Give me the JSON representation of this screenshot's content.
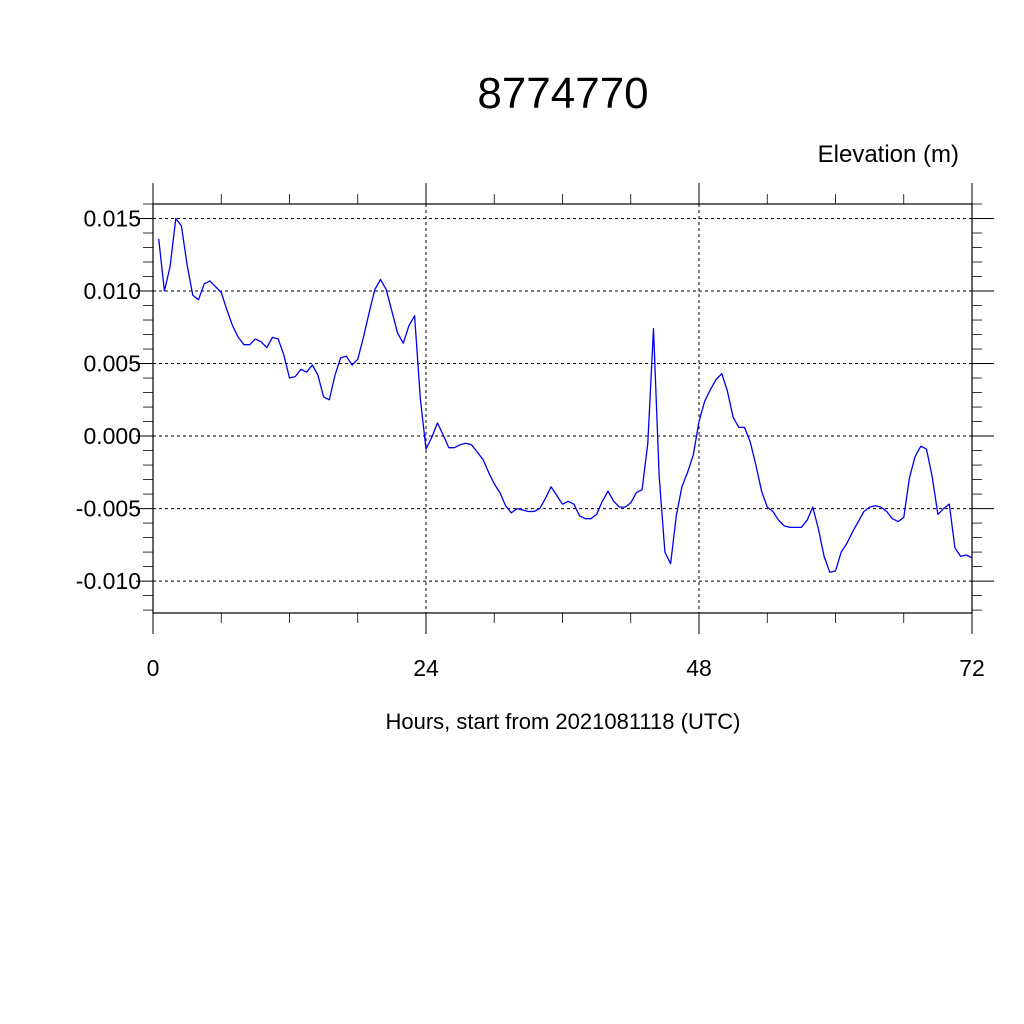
{
  "chart_data": {
    "type": "line",
    "title": "8774770",
    "units_label": "Elevation (m)",
    "xlabel": "Hours, start from 2021081118 (UTC)",
    "ylabel": "",
    "xlim": [
      0,
      72
    ],
    "ylim": [
      -0.0122,
      0.016
    ],
    "x_ticks": [
      0,
      24,
      48,
      72
    ],
    "x_tick_labels": [
      "0",
      "24",
      "48",
      "72"
    ],
    "y_ticks": [
      -0.01,
      -0.005,
      0.0,
      0.005,
      0.01,
      0.015
    ],
    "y_tick_labels": [
      "-0.010",
      "-0.005",
      "0.000",
      "0.005",
      "0.010",
      "0.015"
    ],
    "grid": true,
    "series_color": "#0000ee",
    "series": [
      {
        "x": [
          0.5,
          1,
          1.5,
          2,
          2.5,
          3,
          3.5,
          4,
          4.5,
          5,
          5.5,
          6,
          6.5,
          7,
          7.5,
          8,
          8.5,
          9,
          9.5,
          10,
          10.5,
          11,
          11.5,
          12,
          12.5,
          13,
          13.5,
          14,
          14.5,
          15,
          15.5,
          16,
          16.5,
          17,
          17.5,
          18,
          18.5,
          19,
          19.5,
          20,
          20.5,
          21,
          21.5,
          22,
          22.5,
          23,
          23.5,
          24,
          24.5,
          25,
          25.5,
          26,
          26.5,
          27,
          27.5,
          28,
          28.5,
          29,
          29.5,
          30,
          30.5,
          31,
          31.5,
          32,
          32.5,
          33,
          33.5,
          34,
          34.5,
          35,
          35.5,
          36,
          36.5,
          37,
          37.5,
          38,
          38.5,
          39,
          39.5,
          40,
          40.5,
          41,
          41.5,
          42,
          42.5,
          43,
          43.5,
          44,
          44.5,
          45,
          45.5,
          46,
          46.5,
          47,
          47.5,
          48,
          48.5,
          49,
          49.5,
          50,
          50.5,
          51,
          51.5,
          52,
          52.5,
          53,
          53.5,
          54,
          54.5,
          55,
          55.5,
          56,
          56.5,
          57,
          57.5,
          58,
          58.5,
          59,
          59.5,
          60,
          60.5,
          61,
          61.5,
          62,
          62.5,
          63,
          63.5,
          64,
          64.5,
          65,
          65.5,
          66,
          66.5,
          67,
          67.5,
          68,
          68.5,
          69,
          69.5,
          70,
          70.5,
          71,
          71.5,
          72
        ],
        "y": [
          0.0136,
          0.01,
          0.0117,
          0.015,
          0.0145,
          0.0118,
          0.0097,
          0.0094,
          0.0105,
          0.0107,
          0.0103,
          0.0099,
          0.0087,
          0.0076,
          0.0068,
          0.0063,
          0.0063,
          0.0067,
          0.0065,
          0.0061,
          0.0068,
          0.0067,
          0.0056,
          0.004,
          0.0041,
          0.0046,
          0.0044,
          0.0049,
          0.0042,
          0.0027,
          0.0025,
          0.0042,
          0.0054,
          0.0055,
          0.0049,
          0.0053,
          0.0068,
          0.0085,
          0.0101,
          0.0108,
          0.0101,
          0.0086,
          0.0071,
          0.0064,
          0.0076,
          0.0083,
          0.0026,
          -0.0009,
          -0.0001,
          0.0009,
          0.0001,
          -0.0008,
          -0.0008,
          -0.0006,
          -0.0005,
          -0.0006,
          -0.0011,
          -0.0016,
          -0.0025,
          -0.0033,
          -0.0039,
          -0.0048,
          -0.0053,
          -0.005,
          -0.0051,
          -0.0052,
          -0.0052,
          -0.005,
          -0.0043,
          -0.0035,
          -0.0041,
          -0.0047,
          -0.0045,
          -0.0047,
          -0.0055,
          -0.0057,
          -0.0057,
          -0.0054,
          -0.0045,
          -0.0038,
          -0.0045,
          -0.0049,
          -0.0049,
          -0.0046,
          -0.0039,
          -0.0037,
          -0.0005,
          0.0074,
          -0.0028,
          -0.008,
          -0.0088,
          -0.0055,
          -0.0035,
          -0.0025,
          -0.0013,
          0.001,
          0.0024,
          0.0032,
          0.0039,
          0.0043,
          0.0031,
          0.0013,
          0.0006,
          0.0006,
          -0.0004,
          -0.002,
          -0.0038,
          -0.0049,
          -0.0052,
          -0.0058,
          -0.0062,
          -0.0063,
          -0.0063,
          -0.0063,
          -0.0058,
          -0.0049,
          -0.0064,
          -0.0083,
          -0.0094,
          -0.0093,
          -0.008,
          -0.0074,
          -0.0066,
          -0.0059,
          -0.0052,
          -0.0049,
          -0.0048,
          -0.0049,
          -0.0052,
          -0.0057,
          -0.0059,
          -0.0056,
          -0.0029,
          -0.0014,
          -0.0007,
          -0.0009,
          -0.0028,
          -0.0054,
          -0.005,
          -0.0047,
          -0.0077,
          -0.0083,
          -0.0082,
          -0.0084
        ]
      }
    ]
  }
}
